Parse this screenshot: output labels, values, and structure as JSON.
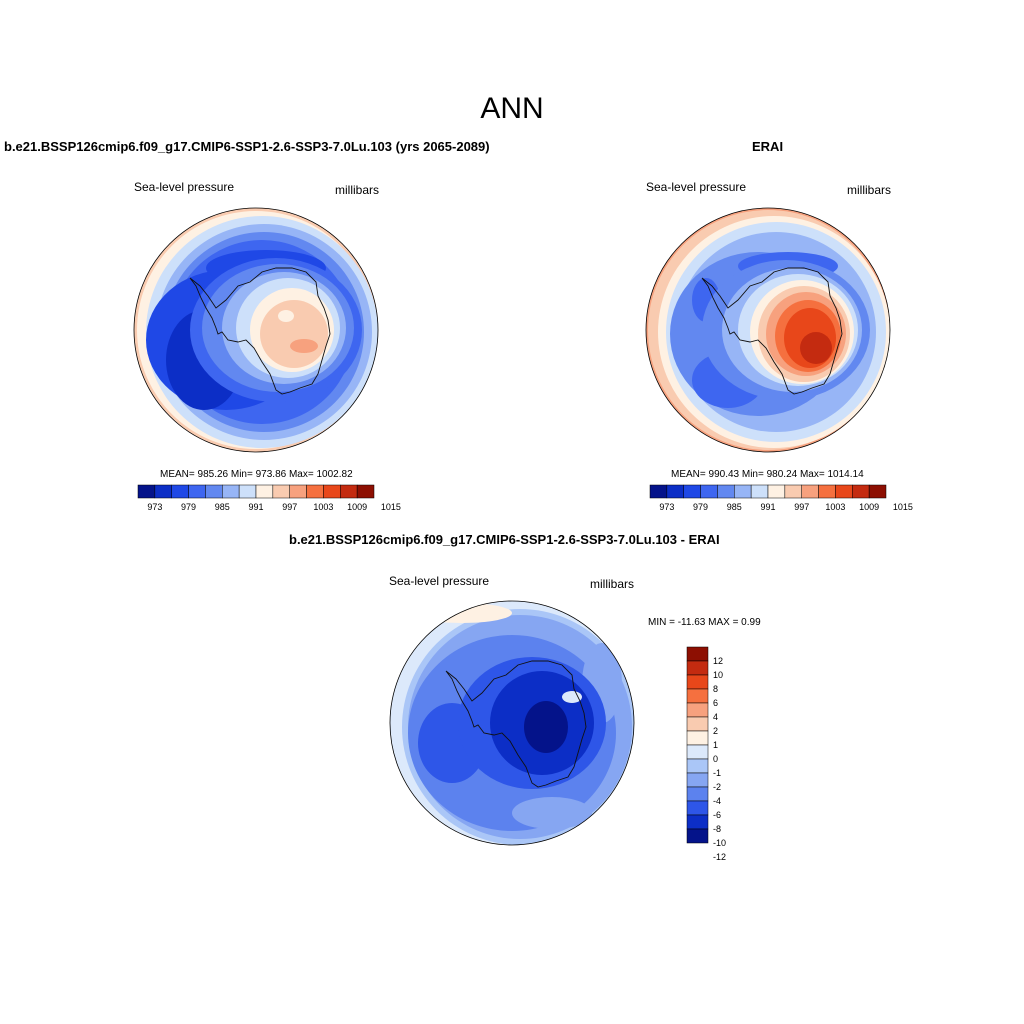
{
  "page_title": "ANN",
  "palettes": {
    "abs": [
      "#04138a",
      "#0c2ec6",
      "#1f48e6",
      "#3e66f0",
      "#6288f0",
      "#97b5f6",
      "#cde0fa",
      "#fef1e3",
      "#f9cbb0",
      "#f7a17e",
      "#f5703f",
      "#e8471a",
      "#c42b10",
      "#8d0f02"
    ],
    "diff": [
      "#8d0f02",
      "#c42b10",
      "#e8471a",
      "#f5703f",
      "#f7a17e",
      "#f9cbb0",
      "#fef1e3",
      "#dce9fb",
      "#aac6f7",
      "#86a6f2",
      "#5c82ee",
      "#2e56e8",
      "#0c2ec6",
      "#04138a"
    ]
  },
  "panels": [
    {
      "title": "b.e21.BSSP126cmip6.f09_g17.CMIP6-SSP1-2.6-SSP3-7.0Lu.103 (yrs 2065-2089)",
      "left_label": "Sea-level pressure",
      "right_label": "millibars",
      "stats": "MEAN= 985.26  Min= 973.86  Max= 1002.82",
      "colorbar_ticks": [
        "973",
        "979",
        "985",
        "991",
        "997",
        "1003",
        "1009",
        "1015"
      ]
    },
    {
      "title": "ERAI",
      "left_label": "Sea-level pressure",
      "right_label": "millibars",
      "stats": "MEAN= 990.43  Min= 980.24  Max= 1014.14",
      "colorbar_ticks": [
        "973",
        "979",
        "985",
        "991",
        "997",
        "1003",
        "1009",
        "1015"
      ]
    },
    {
      "title": "b.e21.BSSP126cmip6.f09_g17.CMIP6-SSP1-2.6-SSP3-7.0Lu.103 - ERAI",
      "left_label": "Sea-level pressure",
      "right_label": "millibars",
      "stats": "MIN = -11.63 MAX =   0.99",
      "colorbar_ticks": [
        "12",
        "10",
        "8",
        "6",
        "4",
        "2",
        "1",
        "0",
        "-1",
        "-2",
        "-4",
        "-6",
        "-8",
        "-10",
        "-12"
      ]
    }
  ]
}
